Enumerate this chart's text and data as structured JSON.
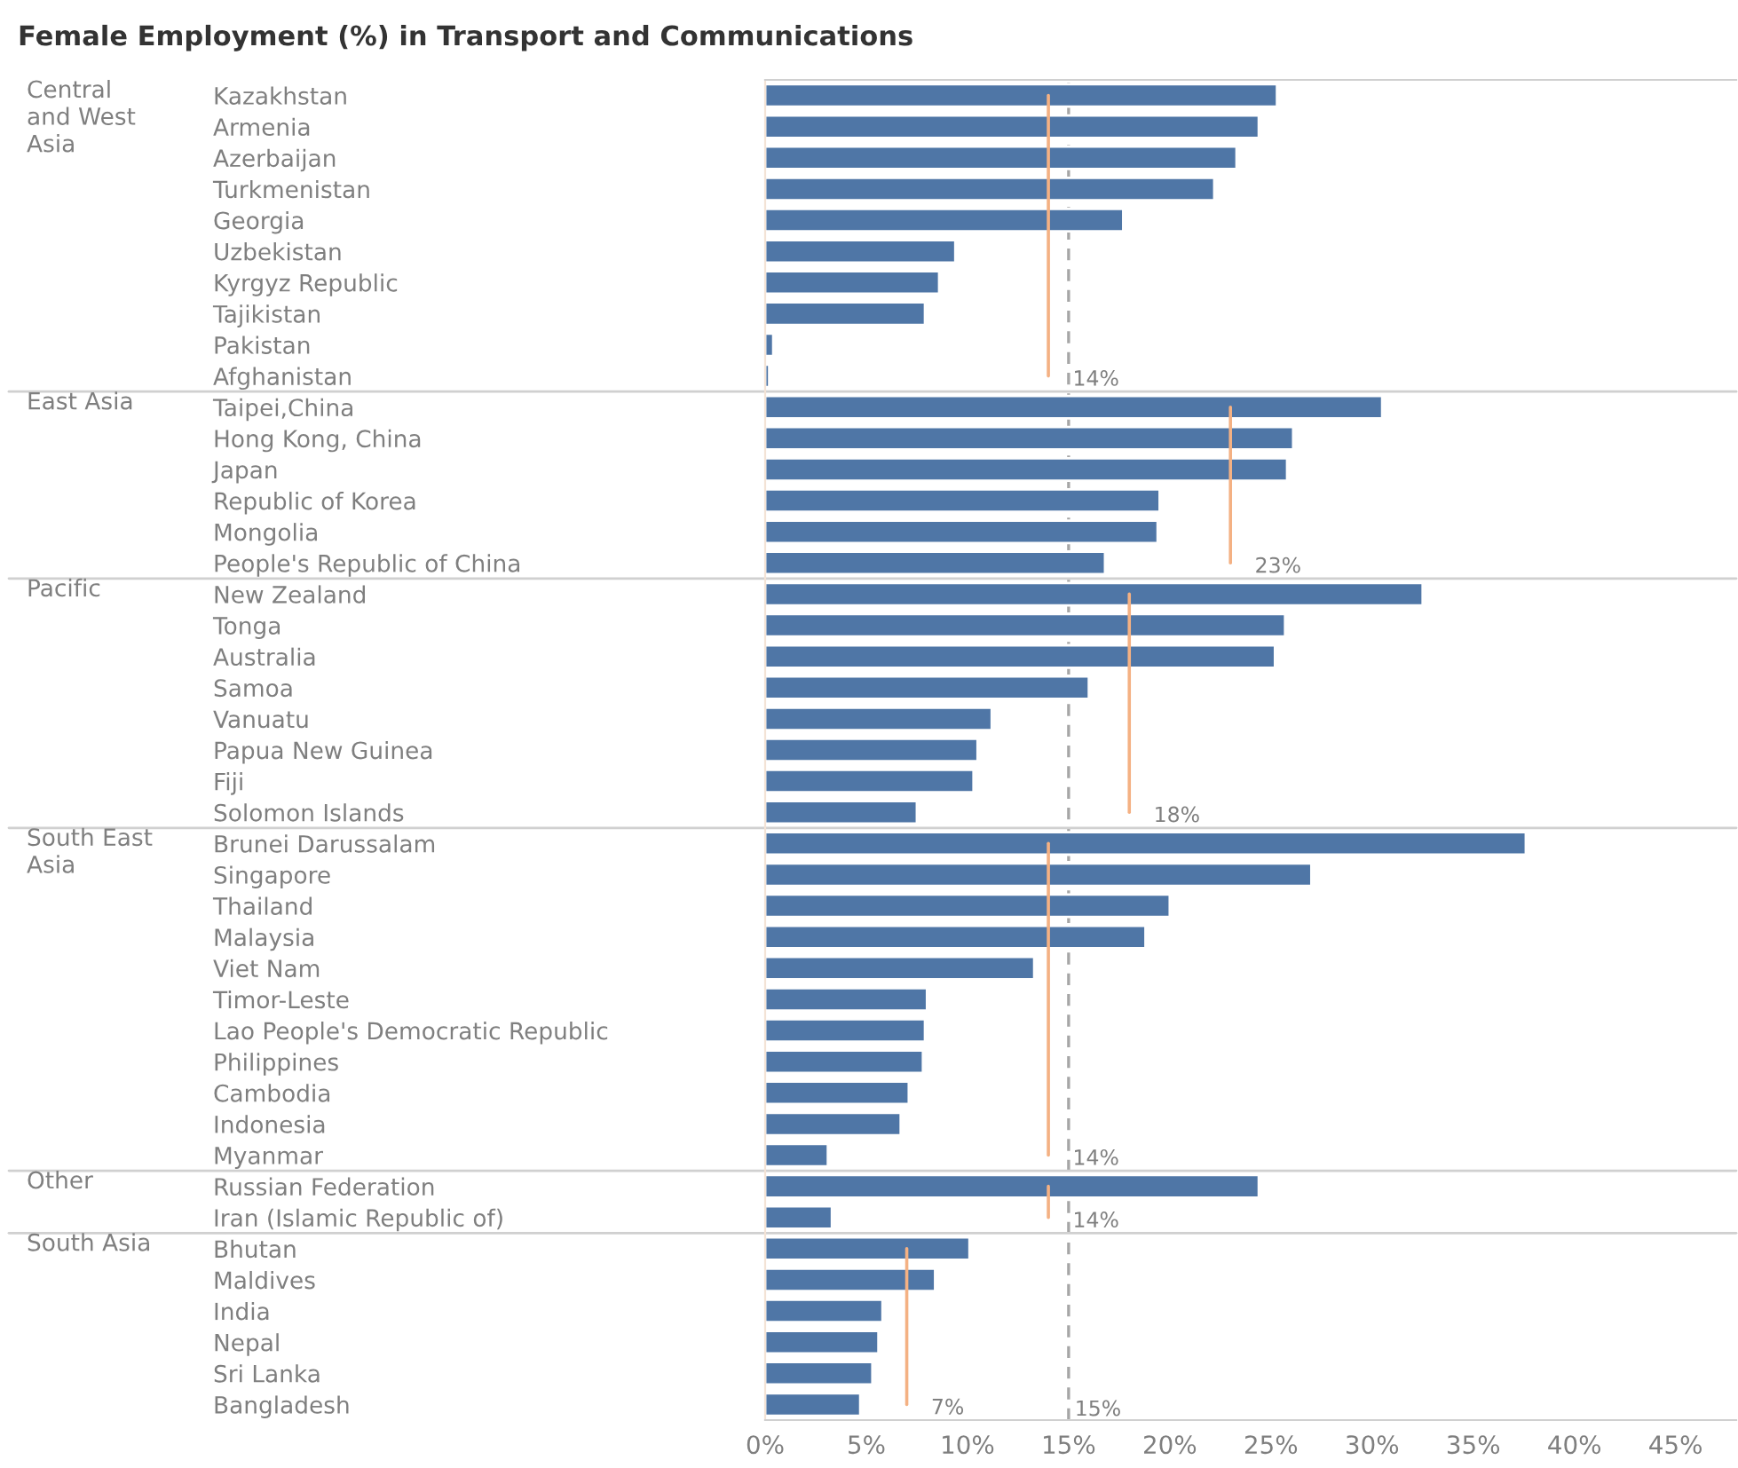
{
  "chart_data": {
    "type": "bar",
    "orientation": "horizontal",
    "title": "Female Employment (%) in Transport and Communications",
    "categories": [
      "Kazakhstan",
      "Armenia",
      "Azerbaijan",
      "Turkmenistan",
      "Georgia",
      "Uzbekistan",
      "Kyrgyz Republic",
      "Tajikistan",
      "Pakistan",
      "Afghanistan",
      "Taipei,China",
      "Hong Kong, China",
      "Japan",
      "Republic of Korea",
      "Mongolia",
      "People's Republic of China",
      "New Zealand",
      "Tonga",
      "Australia",
      "Samoa",
      "Vanuatu",
      "Papua New Guinea",
      "Fiji",
      "Solomon Islands",
      "Brunei Darussalam",
      "Singapore",
      "Thailand",
      "Malaysia",
      "Viet Nam",
      "Timor-Leste",
      "Lao People's Democratic Republic",
      "Philippines",
      "Cambodia",
      "Indonesia",
      "Myanmar",
      "Russian Federation",
      "Iran (Islamic Republic of)",
      "Bhutan",
      "Maldives",
      "India",
      "Nepal",
      "Sri Lanka",
      "Bangladesh"
    ],
    "series": [
      {
        "color": "#4f76a6",
        "values": [
          25.3,
          24.4,
          23.3,
          22.2,
          17.7,
          9.4,
          8.6,
          7.9,
          0.4,
          0.2,
          30.5,
          26.1,
          25.8,
          19.5,
          19.4,
          16.8,
          32.5,
          25.7,
          25.2,
          16.0,
          11.2,
          10.5,
          10.3,
          7.5,
          37.6,
          27.0,
          20.0,
          18.8,
          13.3,
          8.0,
          7.9,
          7.8,
          7.1,
          6.7,
          3.1,
          24.4,
          3.3,
          10.1,
          8.4,
          5.8,
          5.6,
          5.3,
          4.7
        ]
      },
      {
        "type": "line",
        "color": "#f4b183",
        "values": [
          14,
          14,
          14,
          14,
          14,
          14,
          14,
          14,
          14,
          14,
          null,
          null,
          null,
          null,
          null,
          null,
          null,
          null,
          null,
          null,
          null,
          null,
          null,
          null,
          null,
          null,
          null,
          null,
          null,
          null,
          null,
          null,
          null,
          null,
          null,
          null,
          null,
          null,
          null,
          null,
          null,
          null,
          null
        ],
        "value_labels": [
          null,
          null,
          null,
          null,
          null,
          null,
          null,
          null,
          null,
          "14%",
          null,
          null,
          null,
          null,
          null,
          null,
          null,
          null,
          null,
          null,
          null,
          null,
          null,
          null,
          null,
          null,
          null,
          null,
          null,
          null,
          null,
          null,
          null,
          null,
          null,
          null,
          null,
          null,
          null,
          null,
          null,
          null,
          null
        ]
      },
      {
        "type": "line",
        "color": "#f4b183",
        "values": [
          null,
          null,
          null,
          null,
          null,
          null,
          null,
          null,
          null,
          null,
          23,
          23,
          23,
          23,
          23,
          23,
          null,
          null,
          null,
          null,
          null,
          null,
          null,
          null,
          null,
          null,
          null,
          null,
          null,
          null,
          null,
          null,
          null,
          null,
          null,
          null,
          null,
          null,
          null,
          null,
          null,
          null,
          null
        ],
        "value_labels": [
          null,
          null,
          null,
          null,
          null,
          null,
          null,
          null,
          null,
          null,
          null,
          null,
          null,
          null,
          null,
          "23%",
          null,
          null,
          null,
          null,
          null,
          null,
          null,
          null,
          null,
          null,
          null,
          null,
          null,
          null,
          null,
          null,
          null,
          null,
          null,
          null,
          null,
          null,
          null,
          null,
          null,
          null,
          null
        ]
      },
      {
        "type": "line",
        "color": "#f4b183",
        "values": [
          null,
          null,
          null,
          null,
          null,
          null,
          null,
          null,
          null,
          null,
          null,
          null,
          null,
          null,
          null,
          null,
          18,
          18,
          18,
          18,
          18,
          18,
          18,
          18,
          null,
          null,
          null,
          null,
          null,
          null,
          null,
          null,
          null,
          null,
          null,
          null,
          null,
          null,
          null,
          null,
          null,
          null,
          null
        ],
        "value_labels": [
          null,
          null,
          null,
          null,
          null,
          null,
          null,
          null,
          null,
          null,
          null,
          null,
          null,
          null,
          null,
          null,
          null,
          null,
          null,
          null,
          null,
          null,
          null,
          "18%",
          null,
          null,
          null,
          null,
          null,
          null,
          null,
          null,
          null,
          null,
          null,
          null,
          null,
          null,
          null,
          null,
          null,
          null,
          null
        ]
      },
      {
        "type": "line",
        "color": "#f4b183",
        "values": [
          null,
          null,
          null,
          null,
          null,
          null,
          null,
          null,
          null,
          null,
          null,
          null,
          null,
          null,
          null,
          null,
          null,
          null,
          null,
          null,
          null,
          null,
          null,
          null,
          14,
          14,
          14,
          14,
          14,
          14,
          14,
          14,
          14,
          14,
          14,
          null,
          null,
          null,
          null,
          null,
          null,
          null,
          null
        ],
        "value_labels": [
          null,
          null,
          null,
          null,
          null,
          null,
          null,
          null,
          null,
          null,
          null,
          null,
          null,
          null,
          null,
          null,
          null,
          null,
          null,
          null,
          null,
          null,
          null,
          null,
          null,
          null,
          null,
          null,
          null,
          null,
          null,
          null,
          null,
          null,
          "14%",
          null,
          null,
          null,
          null,
          null,
          null,
          null,
          null
        ]
      },
      {
        "type": "line",
        "color": "#f4b183",
        "values": [
          null,
          null,
          null,
          null,
          null,
          null,
          null,
          null,
          null,
          null,
          null,
          null,
          null,
          null,
          null,
          null,
          null,
          null,
          null,
          null,
          null,
          null,
          null,
          null,
          null,
          null,
          null,
          null,
          null,
          null,
          null,
          null,
          null,
          null,
          null,
          14,
          14,
          null,
          null,
          null,
          null,
          null,
          null
        ],
        "value_labels": [
          null,
          null,
          null,
          null,
          null,
          null,
          null,
          null,
          null,
          null,
          null,
          null,
          null,
          null,
          null,
          null,
          null,
          null,
          null,
          null,
          null,
          null,
          null,
          null,
          null,
          null,
          null,
          null,
          null,
          null,
          null,
          null,
          null,
          null,
          null,
          null,
          "14%",
          null,
          null,
          null,
          null,
          null,
          null
        ]
      },
      {
        "type": "line",
        "color": "#f4b183",
        "values": [
          null,
          null,
          null,
          null,
          null,
          null,
          null,
          null,
          null,
          null,
          null,
          null,
          null,
          null,
          null,
          null,
          null,
          null,
          null,
          null,
          null,
          null,
          null,
          null,
          null,
          null,
          null,
          null,
          null,
          null,
          null,
          null,
          null,
          null,
          null,
          null,
          null,
          7,
          7,
          7,
          7,
          7,
          7
        ],
        "value_labels": [
          null,
          null,
          null,
          null,
          null,
          null,
          null,
          null,
          null,
          null,
          null,
          null,
          null,
          null,
          null,
          null,
          null,
          null,
          null,
          null,
          null,
          null,
          null,
          null,
          null,
          null,
          null,
          null,
          null,
          null,
          null,
          null,
          null,
          null,
          null,
          null,
          null,
          null,
          null,
          null,
          null,
          null,
          "7%"
        ]
      }
    ],
    "annotations": [
      "Central\nand West\nAsia",
      "East Asia",
      "Pacific",
      "South East\nAsia",
      "Other",
      "South Asia"
    ],
    "xlim": [
      0,
      48
    ],
    "xticks": [
      {
        "value": 0,
        "label": "0%"
      },
      {
        "value": 5,
        "label": "5%"
      },
      {
        "value": 10,
        "label": "10%"
      },
      {
        "value": 15,
        "label": "15%"
      },
      {
        "value": 20,
        "label": "20%"
      },
      {
        "value": 25,
        "label": "25%"
      },
      {
        "value": 30,
        "label": "30%"
      },
      {
        "value": 35,
        "label": "35%"
      },
      {
        "value": 40,
        "label": "40%"
      },
      {
        "value": 45,
        "label": "45%"
      }
    ],
    "ref_lines": [
      {
        "axis": "x",
        "value": 15,
        "label": "15%",
        "color": "#a6a6a6",
        "line_style": "dashed"
      }
    ],
    "grid": false,
    "legend": false,
    "marker": "none",
    "line_style": "solid"
  }
}
